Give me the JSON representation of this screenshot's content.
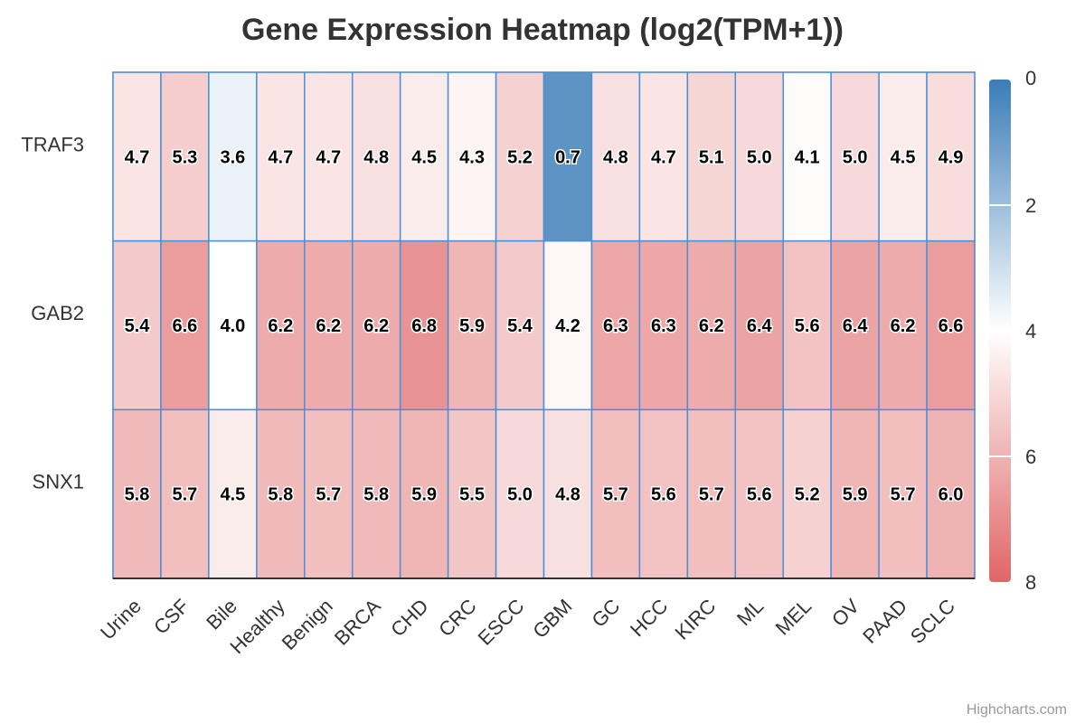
{
  "chart_data": {
    "type": "heatmap",
    "title": "Gene Expression Heatmap (log2(TPM+1))",
    "x_categories": [
      "Urine",
      "CSF",
      "Bile",
      "Healthy",
      "Benign",
      "BRCA",
      "CHD",
      "CRC",
      "ESCC",
      "GBM",
      "GC",
      "HCC",
      "KIRC",
      "ML",
      "MEL",
      "OV",
      "PAAD",
      "SCLC"
    ],
    "y_categories": [
      "TRAF3",
      "GAB2",
      "SNX1"
    ],
    "values": [
      [
        4.7,
        5.3,
        3.6,
        4.7,
        4.7,
        4.8,
        4.5,
        4.3,
        5.2,
        0.7,
        4.8,
        4.7,
        5.1,
        5.0,
        4.1,
        5.0,
        4.5,
        4.9
      ],
      [
        5.4,
        6.6,
        4.0,
        6.2,
        6.2,
        6.2,
        6.8,
        5.9,
        5.4,
        4.2,
        6.3,
        6.3,
        6.2,
        6.4,
        5.6,
        6.4,
        6.2,
        6.6
      ],
      [
        5.8,
        5.7,
        4.5,
        5.8,
        5.7,
        5.8,
        5.9,
        5.5,
        5.0,
        4.8,
        5.7,
        5.6,
        5.7,
        5.6,
        5.2,
        5.9,
        5.7,
        6.0
      ]
    ],
    "color_axis": {
      "min": 0,
      "max": 8,
      "ticks": [
        0,
        2,
        4,
        6,
        8
      ],
      "stops": [
        {
          "at": 0,
          "color": "#3b7db8"
        },
        {
          "at": 0.5,
          "color": "#ffffff"
        },
        {
          "at": 1,
          "color": "#e06666"
        }
      ]
    },
    "legend_position": "right",
    "cell_border_color": "#4a90d9"
  },
  "credits": "Highcharts.com"
}
